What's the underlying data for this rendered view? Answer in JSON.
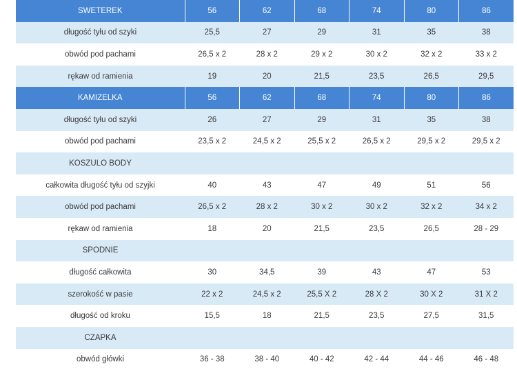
{
  "rows": [
    {
      "style": "blue",
      "label": "SWETEREK",
      "values": [
        "56",
        "62",
        "68",
        "74",
        "80",
        "86"
      ]
    },
    {
      "style": "light",
      "label": "długość tyłu od szyki",
      "values": [
        "25,5",
        "27",
        "29",
        "31",
        "35",
        "38"
      ]
    },
    {
      "style": "white",
      "label": "obwód pod pachami",
      "values": [
        "26,5 x 2",
        "28 x 2",
        "29 x 2",
        "30 x 2",
        "32 x 2",
        "33 x 2"
      ]
    },
    {
      "style": "light",
      "label": "rękaw od ramienia",
      "values": [
        "19",
        "20",
        "21,5",
        "23,5",
        "26,5",
        "29,5"
      ]
    },
    {
      "style": "blue",
      "label": "KAMIZELKA",
      "values": [
        "56",
        "62",
        "68",
        "74",
        "80",
        "86"
      ]
    },
    {
      "style": "light",
      "label": "długość tyłu od szyki",
      "values": [
        "26",
        "27",
        "29",
        "31",
        "35",
        "38"
      ]
    },
    {
      "style": "white",
      "label": "obwód pod pachami",
      "values": [
        "23,5 x 2",
        "24,5 x 2",
        "25,5 x 2",
        "26,5 x 2",
        "29,5 x 2",
        "29,5 x 2"
      ]
    },
    {
      "style": "light",
      "label": "KOSZULO BODY",
      "values": [
        "",
        "",
        "",
        "",
        "",
        ""
      ]
    },
    {
      "style": "white",
      "label": "całkowita długość tyłu od szyjki",
      "values": [
        "40",
        "43",
        "47",
        "49",
        "51",
        "56"
      ]
    },
    {
      "style": "light",
      "label": "obwód pod pachami",
      "values": [
        "26,5 x 2",
        "28 x 2",
        "30 x 2",
        "30 x 2",
        "32 x 2",
        "34 x 2"
      ]
    },
    {
      "style": "white",
      "label": "rękaw od ramienia",
      "values": [
        "18",
        "20",
        "21,5",
        "23,5",
        "26,5",
        "28 - 29"
      ]
    },
    {
      "style": "light",
      "label": "SPODNIE",
      "values": [
        "",
        "",
        "",
        "",
        "",
        ""
      ]
    },
    {
      "style": "white",
      "label": "długość całkowita",
      "values": [
        "30",
        "34,5",
        "39",
        "43",
        "47",
        "53"
      ]
    },
    {
      "style": "light",
      "label": "szerokość w pasie",
      "values": [
        "22 x 2",
        "24,5 x 2",
        "25,5 X 2",
        "28 X 2",
        "30 X 2",
        "31 X 2"
      ]
    },
    {
      "style": "white",
      "label": "długość od kroku",
      "values": [
        "15,5",
        "18",
        "21,5",
        "23,5",
        "27,5",
        "31,5"
      ]
    },
    {
      "style": "light",
      "label": "CZAPKA",
      "values": [
        "",
        "",
        "",
        "",
        "",
        ""
      ]
    },
    {
      "style": "white",
      "label": "obwód główki",
      "values": [
        "36 - 38",
        "38 - 40",
        "40 - 42",
        "42 - 44",
        "44 - 46",
        "46 - 48"
      ]
    }
  ],
  "colors": {
    "header_blue": "#4585d4",
    "light_row": "#d9eaf7",
    "text": "#3a3a3a"
  }
}
